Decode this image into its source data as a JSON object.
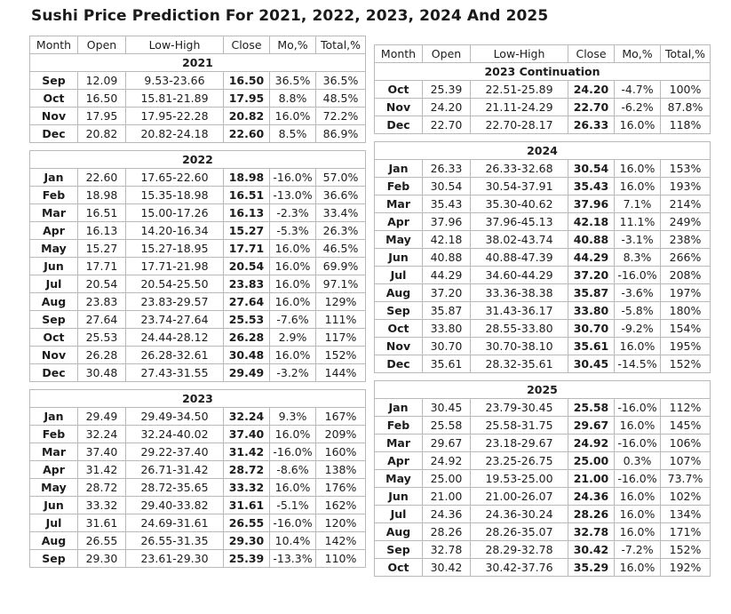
{
  "page": {
    "title": "Sushi Price Prediction For 2021, 2022, 2023, 2024 And 2025"
  },
  "table": {
    "headers": [
      "Month",
      "Open",
      "Low-High",
      "Close",
      "Mo,%",
      "Total,%"
    ],
    "left": {
      "sections": [
        {
          "label": "2021",
          "rows": [
            [
              "Sep",
              "12.09",
              "9.53-23.66",
              "16.50",
              "36.5%",
              "36.5%"
            ],
            [
              "Oct",
              "16.50",
              "15.81-21.89",
              "17.95",
              "8.8%",
              "48.5%"
            ],
            [
              "Nov",
              "17.95",
              "17.95-22.28",
              "20.82",
              "16.0%",
              "72.2%"
            ],
            [
              "Dec",
              "20.82",
              "20.82-24.18",
              "22.60",
              "8.5%",
              "86.9%"
            ]
          ]
        },
        {
          "label": "2022",
          "rows": [
            [
              "Jan",
              "22.60",
              "17.65-22.60",
              "18.98",
              "-16.0%",
              "57.0%"
            ],
            [
              "Feb",
              "18.98",
              "15.35-18.98",
              "16.51",
              "-13.0%",
              "36.6%"
            ],
            [
              "Mar",
              "16.51",
              "15.00-17.26",
              "16.13",
              "-2.3%",
              "33.4%"
            ],
            [
              "Apr",
              "16.13",
              "14.20-16.34",
              "15.27",
              "-5.3%",
              "26.3%"
            ],
            [
              "May",
              "15.27",
              "15.27-18.95",
              "17.71",
              "16.0%",
              "46.5%"
            ],
            [
              "Jun",
              "17.71",
              "17.71-21.98",
              "20.54",
              "16.0%",
              "69.9%"
            ],
            [
              "Jul",
              "20.54",
              "20.54-25.50",
              "23.83",
              "16.0%",
              "97.1%"
            ],
            [
              "Aug",
              "23.83",
              "23.83-29.57",
              "27.64",
              "16.0%",
              "129%"
            ],
            [
              "Sep",
              "27.64",
              "23.74-27.64",
              "25.53",
              "-7.6%",
              "111%"
            ],
            [
              "Oct",
              "25.53",
              "24.44-28.12",
              "26.28",
              "2.9%",
              "117%"
            ],
            [
              "Nov",
              "26.28",
              "26.28-32.61",
              "30.48",
              "16.0%",
              "152%"
            ],
            [
              "Dec",
              "30.48",
              "27.43-31.55",
              "29.49",
              "-3.2%",
              "144%"
            ]
          ]
        },
        {
          "label": "2023",
          "rows": [
            [
              "Jan",
              "29.49",
              "29.49-34.50",
              "32.24",
              "9.3%",
              "167%"
            ],
            [
              "Feb",
              "32.24",
              "32.24-40.02",
              "37.40",
              "16.0%",
              "209%"
            ],
            [
              "Mar",
              "37.40",
              "29.22-37.40",
              "31.42",
              "-16.0%",
              "160%"
            ],
            [
              "Apr",
              "31.42",
              "26.71-31.42",
              "28.72",
              "-8.6%",
              "138%"
            ],
            [
              "May",
              "28.72",
              "28.72-35.65",
              "33.32",
              "16.0%",
              "176%"
            ],
            [
              "Jun",
              "33.32",
              "29.40-33.82",
              "31.61",
              "-5.1%",
              "162%"
            ],
            [
              "Jul",
              "31.61",
              "24.69-31.61",
              "26.55",
              "-16.0%",
              "120%"
            ],
            [
              "Aug",
              "26.55",
              "26.55-31.35",
              "29.30",
              "10.4%",
              "142%"
            ],
            [
              "Sep",
              "29.30",
              "23.61-29.30",
              "25.39",
              "-13.3%",
              "110%"
            ]
          ]
        }
      ]
    },
    "right": {
      "sections": [
        {
          "label": "2023 Continuation",
          "rows": [
            [
              "Oct",
              "25.39",
              "22.51-25.89",
              "24.20",
              "-4.7%",
              "100%"
            ],
            [
              "Nov",
              "24.20",
              "21.11-24.29",
              "22.70",
              "-6.2%",
              "87.8%"
            ],
            [
              "Dec",
              "22.70",
              "22.70-28.17",
              "26.33",
              "16.0%",
              "118%"
            ]
          ]
        },
        {
          "label": "2024",
          "rows": [
            [
              "Jan",
              "26.33",
              "26.33-32.68",
              "30.54",
              "16.0%",
              "153%"
            ],
            [
              "Feb",
              "30.54",
              "30.54-37.91",
              "35.43",
              "16.0%",
              "193%"
            ],
            [
              "Mar",
              "35.43",
              "35.30-40.62",
              "37.96",
              "7.1%",
              "214%"
            ],
            [
              "Apr",
              "37.96",
              "37.96-45.13",
              "42.18",
              "11.1%",
              "249%"
            ],
            [
              "May",
              "42.18",
              "38.02-43.74",
              "40.88",
              "-3.1%",
              "238%"
            ],
            [
              "Jun",
              "40.88",
              "40.88-47.39",
              "44.29",
              "8.3%",
              "266%"
            ],
            [
              "Jul",
              "44.29",
              "34.60-44.29",
              "37.20",
              "-16.0%",
              "208%"
            ],
            [
              "Aug",
              "37.20",
              "33.36-38.38",
              "35.87",
              "-3.6%",
              "197%"
            ],
            [
              "Sep",
              "35.87",
              "31.43-36.17",
              "33.80",
              "-5.8%",
              "180%"
            ],
            [
              "Oct",
              "33.80",
              "28.55-33.80",
              "30.70",
              "-9.2%",
              "154%"
            ],
            [
              "Nov",
              "30.70",
              "30.70-38.10",
              "35.61",
              "16.0%",
              "195%"
            ],
            [
              "Dec",
              "35.61",
              "28.32-35.61",
              "30.45",
              "-14.5%",
              "152%"
            ]
          ]
        },
        {
          "label": "2025",
          "rows": [
            [
              "Jan",
              "30.45",
              "23.79-30.45",
              "25.58",
              "-16.0%",
              "112%"
            ],
            [
              "Feb",
              "25.58",
              "25.58-31.75",
              "29.67",
              "16.0%",
              "145%"
            ],
            [
              "Mar",
              "29.67",
              "23.18-29.67",
              "24.92",
              "-16.0%",
              "106%"
            ],
            [
              "Apr",
              "24.92",
              "23.25-26.75",
              "25.00",
              "0.3%",
              "107%"
            ],
            [
              "May",
              "25.00",
              "19.53-25.00",
              "21.00",
              "-16.0%",
              "73.7%"
            ],
            [
              "Jun",
              "21.00",
              "21.00-26.07",
              "24.36",
              "16.0%",
              "102%"
            ],
            [
              "Jul",
              "24.36",
              "24.36-30.24",
              "28.26",
              "16.0%",
              "134%"
            ],
            [
              "Aug",
              "28.26",
              "28.26-35.07",
              "32.78",
              "16.0%",
              "171%"
            ],
            [
              "Sep",
              "32.78",
              "28.29-32.78",
              "30.42",
              "-7.2%",
              "152%"
            ],
            [
              "Oct",
              "30.42",
              "30.42-37.76",
              "35.29",
              "16.0%",
              "192%"
            ]
          ]
        }
      ]
    }
  }
}
